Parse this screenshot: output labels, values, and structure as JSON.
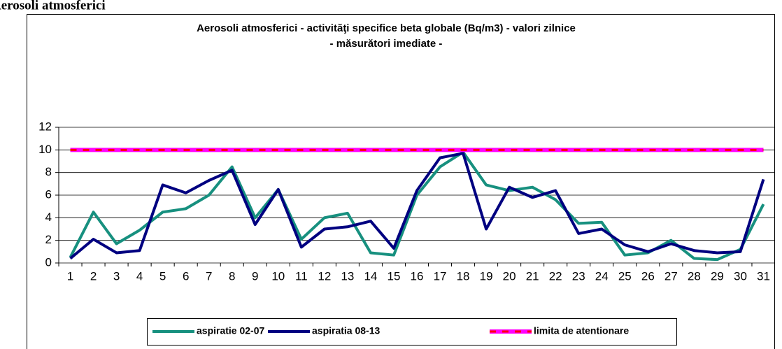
{
  "heading": "Aerosoli atmosferici",
  "chart_data": {
    "type": "line",
    "title": [
      "Aerosoli atmosferici - activităţi specifice beta   globale (Bq/m3) - valori zilnice",
      "- măsurători imediate -"
    ],
    "categories": [
      "1",
      "2",
      "3",
      "4",
      "5",
      "6",
      "7",
      "8",
      "9",
      "10",
      "11",
      "12",
      "13",
      "14",
      "15",
      "16",
      "17",
      "18",
      "19",
      "20",
      "21",
      "22",
      "23",
      "24",
      "25",
      "26",
      "27",
      "28",
      "29",
      "30",
      "31"
    ],
    "series": [
      {
        "name": "aspiratie 02-07",
        "color": "#17907f",
        "values": [
          0.5,
          4.5,
          1.7,
          2.9,
          4.5,
          4.8,
          6.0,
          8.5,
          4.0,
          6.5,
          2.1,
          4.0,
          4.4,
          0.9,
          0.7,
          6.0,
          8.5,
          9.8,
          6.9,
          6.4,
          6.7,
          5.6,
          3.5,
          3.6,
          0.7,
          0.9,
          2.0,
          0.4,
          0.3,
          1.2,
          5.2
        ]
      },
      {
        "name": "aspiratia 08-13",
        "color": "#000080",
        "values": [
          0.4,
          2.1,
          0.9,
          1.1,
          6.9,
          6.2,
          7.3,
          8.2,
          3.4,
          6.5,
          1.4,
          3.0,
          3.2,
          3.7,
          1.3,
          6.4,
          9.3,
          9.7,
          3.0,
          6.7,
          5.8,
          6.4,
          2.6,
          3.0,
          1.6,
          1.0,
          1.7,
          1.1,
          0.9,
          1.0,
          7.4
        ]
      },
      {
        "name": "limita de atentionare",
        "color": "#ff00ff",
        "dash_color": "#ff0000",
        "values": [
          10,
          10,
          10,
          10,
          10,
          10,
          10,
          10,
          10,
          10,
          10,
          10,
          10,
          10,
          10,
          10,
          10,
          10,
          10,
          10,
          10,
          10,
          10,
          10,
          10,
          10,
          10,
          10,
          10,
          10,
          10
        ]
      }
    ],
    "ylim": [
      0,
      12
    ],
    "yticks": [
      0,
      2,
      4,
      6,
      8,
      10,
      12
    ],
    "grid": true
  }
}
